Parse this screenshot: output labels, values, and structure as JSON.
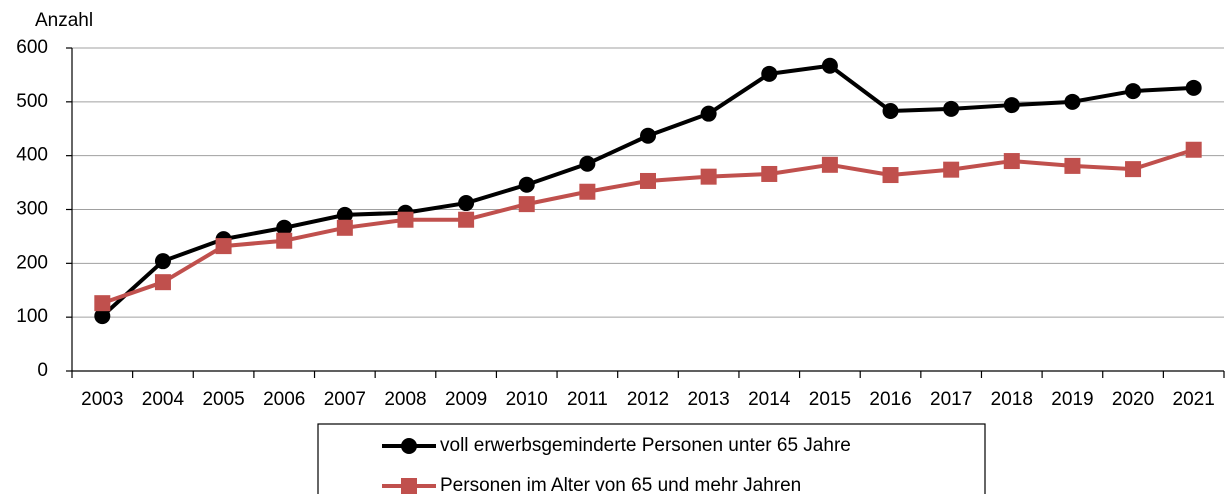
{
  "chart_data": {
    "type": "line",
    "y_label": "Anzahl",
    "categories": [
      "2003",
      "2004",
      "2005",
      "2006",
      "2007",
      "2008",
      "2009",
      "2010",
      "2011",
      "2012",
      "2013",
      "2014",
      "2015",
      "2016",
      "2017",
      "2018",
      "2019",
      "2020",
      "2021"
    ],
    "series": [
      {
        "name": "voll erwerbsgeminderte Personen unter 65 Jahre",
        "color": "#000000",
        "marker": "circle",
        "values": [
          102,
          204,
          245,
          266,
          290,
          294,
          312,
          346,
          385,
          437,
          478,
          552,
          567,
          483,
          487,
          494,
          500,
          520,
          526
        ]
      },
      {
        "name": "Personen im Alter von 65 und mehr Jahren",
        "color": "#c0504d",
        "marker": "square",
        "values": [
          126,
          165,
          232,
          242,
          266,
          281,
          281,
          310,
          333,
          353,
          361,
          366,
          383,
          364,
          374,
          390,
          381,
          375,
          411
        ]
      }
    ],
    "ylim": [
      0,
      600
    ],
    "yticks": [
      0,
      100,
      200,
      300,
      400,
      500,
      600
    ],
    "grid": true
  }
}
